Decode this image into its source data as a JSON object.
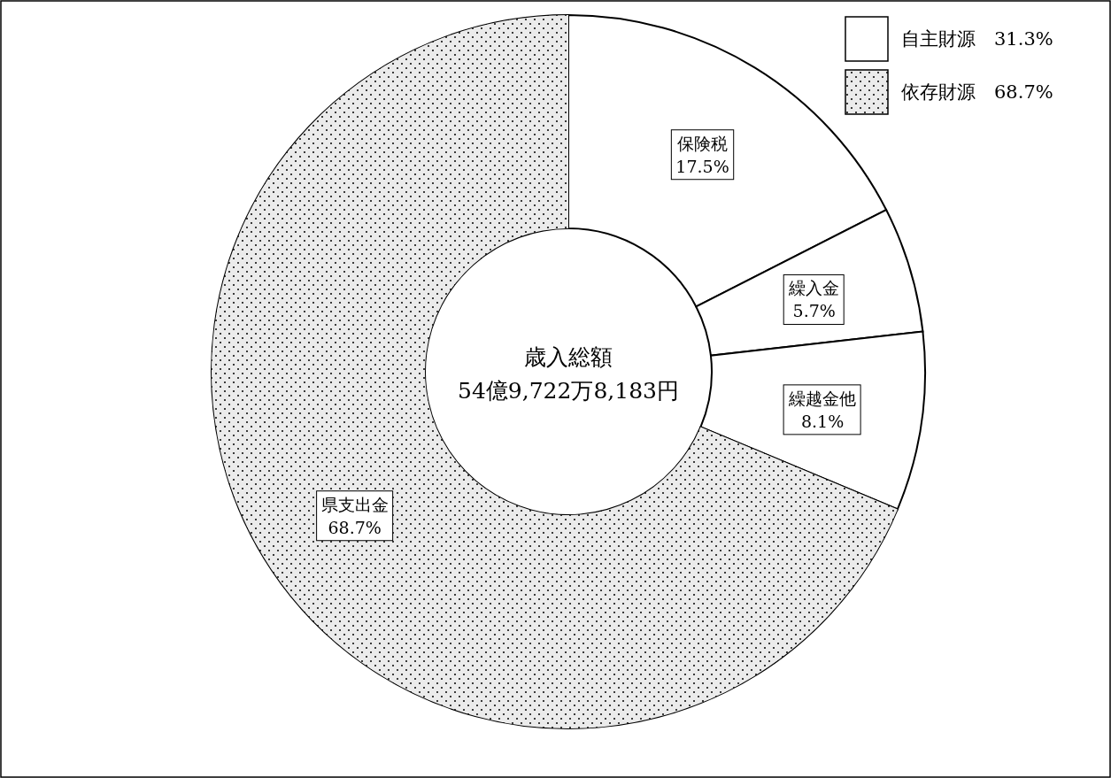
{
  "chart_data": {
    "type": "donut",
    "categories": [
      "保険税",
      "繰入金",
      "繰越金他",
      "県支出金"
    ],
    "values": [
      17.5,
      5.7,
      8.1,
      68.7
    ],
    "colors": [
      "#ffffff",
      "#ffffff",
      "#ffffff",
      "#ebebeb"
    ],
    "value_labels": [
      "17.5%",
      "5.7%",
      "8.1%",
      "68.7%"
    ],
    "annotations": [
      "歳入総額",
      "54億9,722万8,183円",
      "自主財源　31.3%",
      "依存財源　68.7%"
    ]
  }
}
